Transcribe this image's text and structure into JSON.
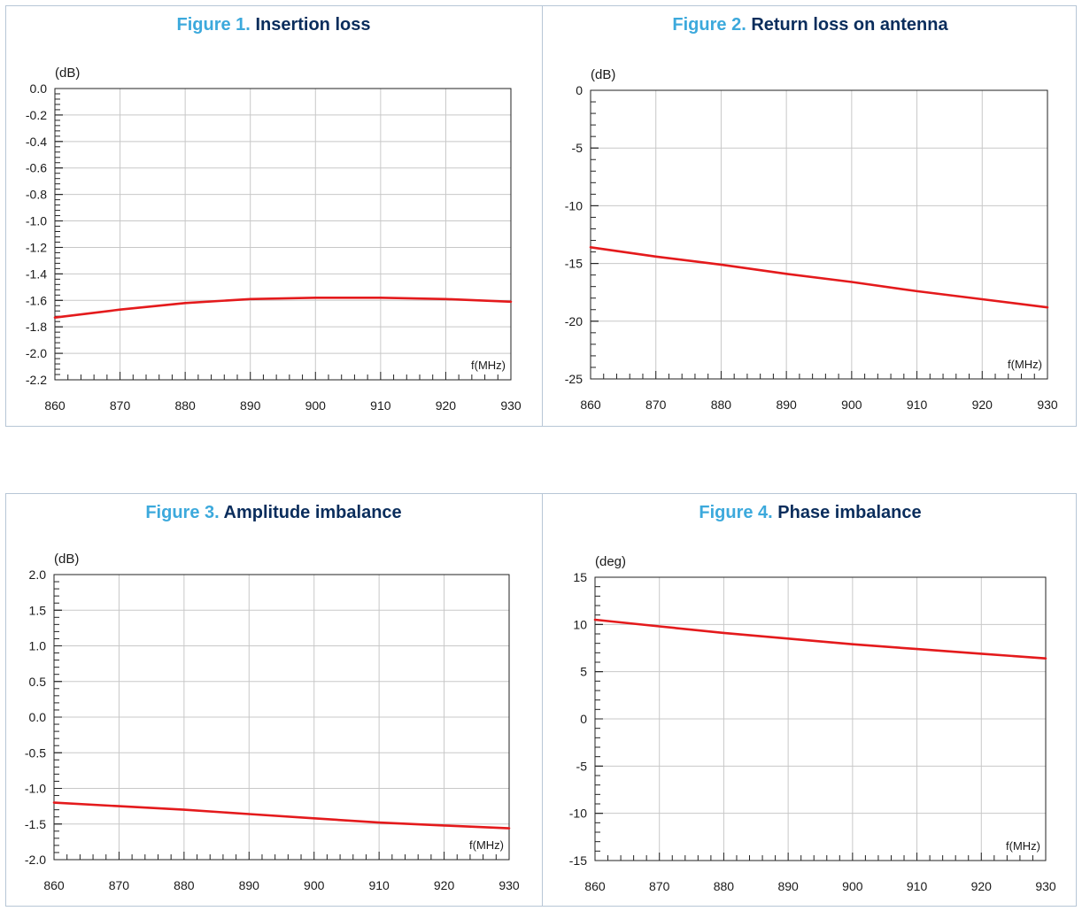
{
  "chart_data": [
    {
      "type": "line",
      "figure_number": "Figure 1.",
      "title": "Insertion loss",
      "ylabel": "(dB)",
      "xlabel": "f(MHz)",
      "xlim": [
        860,
        930
      ],
      "ylim": [
        -2.2,
        0.0
      ],
      "x_ticks": [
        "860",
        "870",
        "880",
        "890",
        "900",
        "910",
        "920",
        "930"
      ],
      "y_ticks": [
        "0.0",
        "-0.2",
        "-0.4",
        "-0.6",
        "-0.8",
        "-1.0",
        "-1.2",
        "-1.4",
        "-1.6",
        "-1.8",
        "-2.0",
        "-2.2"
      ],
      "grid": true,
      "line_color": "#e41a1c",
      "series": [
        {
          "x": [
            860,
            870,
            880,
            890,
            900,
            910,
            920,
            930
          ],
          "values": [
            -1.73,
            -1.67,
            -1.62,
            -1.59,
            -1.58,
            -1.58,
            -1.59,
            -1.61
          ]
        }
      ]
    },
    {
      "type": "line",
      "figure_number": "Figure 2.",
      "title": "Return loss on antenna",
      "ylabel": "(dB)",
      "xlabel": "f(MHz)",
      "xlim": [
        860,
        930
      ],
      "ylim": [
        -25,
        0
      ],
      "x_ticks": [
        "860",
        "870",
        "880",
        "890",
        "900",
        "910",
        "920",
        "930"
      ],
      "y_ticks": [
        "0",
        "-5",
        "-10",
        "-15",
        "-20",
        "-25"
      ],
      "grid": true,
      "line_color": "#e41a1c",
      "series": [
        {
          "x": [
            860,
            870,
            880,
            890,
            900,
            910,
            920,
            930
          ],
          "values": [
            -13.6,
            -14.4,
            -15.1,
            -15.9,
            -16.6,
            -17.4,
            -18.1,
            -18.8
          ]
        }
      ]
    },
    {
      "type": "line",
      "figure_number": "Figure 3.",
      "title": "Amplitude imbalance",
      "ylabel": "(dB)",
      "xlabel": "f(MHz)",
      "xlim": [
        860,
        930
      ],
      "ylim": [
        -2.0,
        2.0
      ],
      "x_ticks": [
        "860",
        "870",
        "880",
        "890",
        "900",
        "910",
        "920",
        "930"
      ],
      "y_ticks": [
        "2.0",
        "1.5",
        "1.0",
        "0.5",
        "0.0",
        "-0.5",
        "-1.0",
        "-1.5",
        "-2.0"
      ],
      "grid": true,
      "line_color": "#e41a1c",
      "series": [
        {
          "x": [
            860,
            870,
            880,
            890,
            900,
            910,
            920,
            930
          ],
          "values": [
            -1.2,
            -1.25,
            -1.3,
            -1.36,
            -1.42,
            -1.48,
            -1.52,
            -1.56
          ]
        }
      ]
    },
    {
      "type": "line",
      "figure_number": "Figure 4.",
      "title": "Phase imbalance",
      "ylabel": "(deg)",
      "xlabel": "f(MHz)",
      "xlim": [
        860,
        930
      ],
      "ylim": [
        -15,
        15
      ],
      "x_ticks": [
        "860",
        "870",
        "880",
        "890",
        "900",
        "910",
        "920",
        "930"
      ],
      "y_ticks": [
        "15",
        "10",
        "5",
        "0",
        "-5",
        "-10",
        "-15"
      ],
      "grid": true,
      "line_color": "#e41a1c",
      "series": [
        {
          "x": [
            860,
            870,
            880,
            890,
            900,
            910,
            920,
            930
          ],
          "values": [
            10.5,
            9.8,
            9.1,
            8.5,
            7.9,
            7.4,
            6.9,
            6.4
          ]
        }
      ]
    }
  ]
}
